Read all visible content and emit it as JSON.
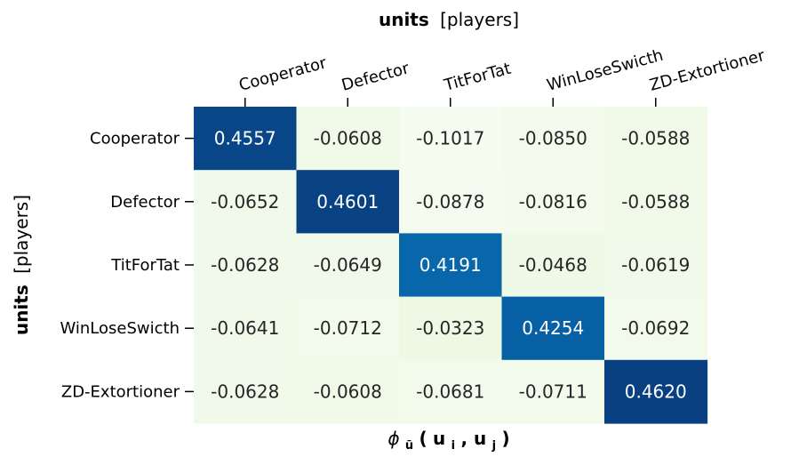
{
  "chart_data": {
    "type": "heatmap",
    "title": {
      "bold": "units",
      "rest": "[players]"
    },
    "ylabel": {
      "bold": "units",
      "rest": "[players]"
    },
    "xlabel": {
      "phi": "ϕ",
      "sub": "ū",
      "open": "(",
      "u1": "u",
      "i": "i",
      "comma": ", ",
      "u2": "u",
      "j": "j",
      "close": ")"
    },
    "columns": [
      "Cooperator",
      "Defector",
      "TitForTat",
      "WinLoseSwicth",
      "ZD-Extortioner"
    ],
    "rows": [
      "Cooperator",
      "Defector",
      "TitForTat",
      "WinLoseSwicth",
      "ZD-Extortioner"
    ],
    "values": [
      [
        0.4557,
        -0.0608,
        -0.1017,
        -0.085,
        -0.0588
      ],
      [
        -0.0652,
        0.4601,
        -0.0878,
        -0.0816,
        -0.0588
      ],
      [
        -0.0628,
        -0.0649,
        0.4191,
        -0.0468,
        -0.0619
      ],
      [
        -0.0641,
        -0.0712,
        -0.0323,
        0.4254,
        -0.0692
      ],
      [
        -0.0628,
        -0.0608,
        -0.0681,
        -0.0711,
        0.462
      ]
    ],
    "labels": [
      [
        "0.4557",
        "-0.0608",
        "-0.1017",
        "-0.0850",
        "-0.0588"
      ],
      [
        "-0.0652",
        "0.4601",
        "-0.0878",
        "-0.0816",
        "-0.0588"
      ],
      [
        "-0.0628",
        "-0.0649",
        "0.4191",
        "-0.0468",
        "-0.0619"
      ],
      [
        "-0.0641",
        "-0.0712",
        "-0.0323",
        "0.4254",
        "-0.0692"
      ],
      [
        "-0.0628",
        "-0.0608",
        "-0.0681",
        "-0.0711",
        "0.4620"
      ]
    ],
    "colormap": "Greens (low) to dark blue (high)",
    "vmin": -0.1017,
    "vmax": 0.462
  }
}
